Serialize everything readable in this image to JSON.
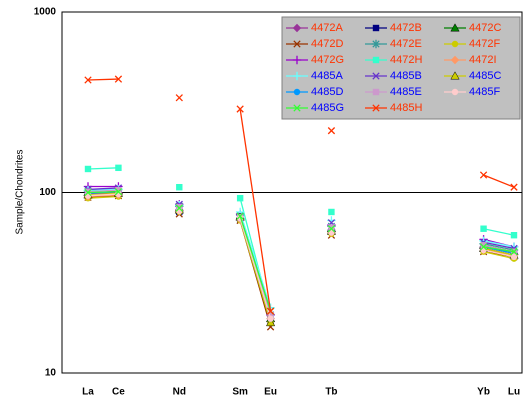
{
  "chart_data": {
    "type": "line",
    "y_label": "Sample/Chondrites",
    "categories": [
      "La",
      "Ce",
      null,
      "Nd",
      null,
      "Sm",
      "Eu",
      null,
      "Tb",
      null,
      null,
      null,
      null,
      "Yb",
      "Lu"
    ],
    "ylog": true,
    "ylim": [
      10,
      1000
    ],
    "yticks": [
      10,
      100,
      1000
    ],
    "grid": true,
    "legend": "upper right",
    "series": [
      {
        "name": "4472A",
        "color": "#993399",
        "label_color": "#ff3300",
        "marker": "diamond",
        "values": [
          98,
          100,
          null,
          80,
          null,
          72,
          20,
          null,
          62,
          null,
          null,
          null,
          null,
          50,
          46
        ]
      },
      {
        "name": "4472B",
        "color": "#000080",
        "label_color": "#ff3300",
        "marker": "square",
        "values": [
          96,
          98,
          null,
          78,
          null,
          71,
          19,
          null,
          61,
          null,
          null,
          null,
          null,
          49,
          45
        ]
      },
      {
        "name": "4472C",
        "color": "#008000",
        "label_color": "#ff3300",
        "marker": "triangle",
        "values": [
          100,
          102,
          null,
          82,
          null,
          74,
          20,
          null,
          63,
          null,
          null,
          null,
          null,
          51,
          47
        ]
      },
      {
        "name": "4472D",
        "color": "#993300",
        "label_color": "#ff3300",
        "marker": "x",
        "values": [
          94,
          96,
          null,
          76,
          null,
          70,
          18,
          null,
          58,
          null,
          null,
          null,
          null,
          47,
          44
        ]
      },
      {
        "name": "4472E",
        "color": "#339999",
        "label_color": "#ff3300",
        "marker": "star",
        "values": [
          102,
          104,
          null,
          84,
          null,
          75,
          21,
          null,
          65,
          null,
          null,
          null,
          null,
          52,
          48
        ]
      },
      {
        "name": "4472F",
        "color": "#cccc00",
        "label_color": "#ff3300",
        "marker": "circle",
        "values": [
          93,
          95,
          null,
          78,
          null,
          70,
          19,
          null,
          59,
          null,
          null,
          null,
          null,
          47,
          43
        ]
      },
      {
        "name": "4472G",
        "color": "#9900cc",
        "label_color": "#ff3300",
        "marker": "plus",
        "values": [
          108,
          108,
          null,
          86,
          null,
          76,
          21,
          null,
          66,
          null,
          null,
          null,
          null,
          55,
          50
        ]
      },
      {
        "name": "4472H",
        "color": "#33ffcc",
        "label_color": "#ff3300",
        "marker": "square",
        "values": [
          135,
          137,
          null,
          107,
          null,
          93,
          21,
          null,
          78,
          null,
          null,
          null,
          null,
          63,
          58
        ]
      },
      {
        "name": "4472I",
        "color": "#ff9966",
        "label_color": "#ff3300",
        "marker": "diamond",
        "values": [
          95,
          97,
          null,
          79,
          null,
          71,
          20,
          null,
          60,
          null,
          null,
          null,
          null,
          48,
          45
        ]
      },
      {
        "name": "4485A",
        "color": "#66ffff",
        "label_color": "#0000ff",
        "marker": "plus",
        "values": [
          103,
          104,
          null,
          85,
          null,
          78,
          23,
          null,
          70,
          null,
          null,
          null,
          null,
          54,
          50
        ]
      },
      {
        "name": "4485B",
        "color": "#6633cc",
        "label_color": "#0000ff",
        "marker": "x",
        "values": [
          104,
          106,
          null,
          86,
          null,
          74,
          22,
          null,
          68,
          null,
          null,
          null,
          null,
          53,
          49
        ]
      },
      {
        "name": "4485C",
        "color": "#cccc00",
        "label_color": "#0000ff",
        "marker": "triangle",
        "values": [
          97,
          99,
          null,
          80,
          null,
          73,
          19,
          null,
          61,
          null,
          null,
          null,
          null,
          49,
          45
        ]
      },
      {
        "name": "4485D",
        "color": "#0099ff",
        "label_color": "#0000ff",
        "marker": "circle",
        "values": [
          99,
          101,
          null,
          81,
          null,
          72,
          20,
          null,
          62,
          null,
          null,
          null,
          null,
          50,
          46
        ]
      },
      {
        "name": "4485E",
        "color": "#cc99cc",
        "label_color": "#0000ff",
        "marker": "square",
        "values": [
          101,
          103,
          null,
          83,
          null,
          73,
          21,
          null,
          64,
          null,
          null,
          null,
          null,
          51,
          47
        ]
      },
      {
        "name": "4485F",
        "color": "#ffcccc",
        "label_color": "#0000ff",
        "marker": "circle",
        "values": [
          96,
          98,
          null,
          79,
          null,
          72,
          20,
          null,
          60,
          null,
          null,
          null,
          null,
          48,
          44
        ]
      },
      {
        "name": "4485G",
        "color": "#33ff33",
        "label_color": "#0000ff",
        "marker": "x",
        "values": [
          100,
          101,
          null,
          82,
          null,
          74,
          22,
          null,
          63,
          null,
          null,
          null,
          null,
          50,
          47
        ]
      },
      {
        "name": "4485H",
        "color": "#ff3300",
        "label_color": "#ff3300",
        "marker": "x",
        "values": [
          420,
          425,
          null,
          335,
          null,
          290,
          22,
          null,
          220,
          null,
          null,
          null,
          null,
          125,
          107
        ]
      }
    ]
  }
}
